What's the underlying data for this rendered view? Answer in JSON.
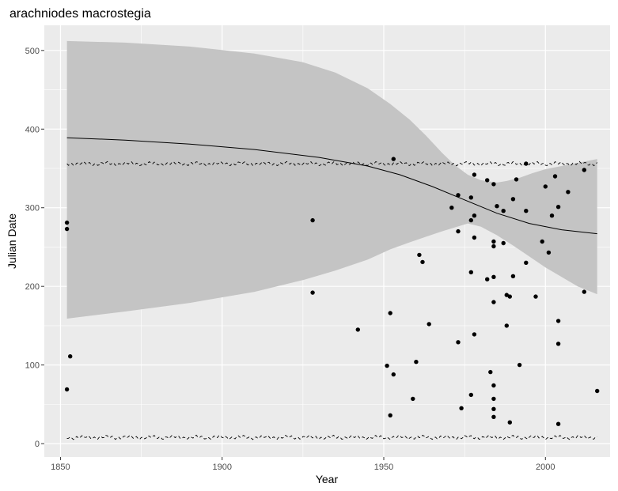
{
  "chart_data": {
    "type": "scatter",
    "title": "arachniodes macrostegia",
    "xlabel": "Year",
    "ylabel": "Julian Date",
    "xlim": [
      1845,
      2020
    ],
    "ylim": [
      -17,
      532
    ],
    "x_ticks": [
      1850,
      1900,
      1950,
      2000
    ],
    "y_ticks": [
      0,
      100,
      200,
      300,
      400,
      500
    ],
    "grid": true,
    "background": "#ebebeb",
    "gridline_color": "#ffffff",
    "ribbon_color": "#c4c4c4",
    "point_color": "#000000",
    "points": [
      [
        1852,
        281
      ],
      [
        1852,
        273
      ],
      [
        1852,
        69
      ],
      [
        1853,
        111
      ],
      [
        1928,
        284
      ],
      [
        1928,
        192
      ],
      [
        1942,
        145
      ],
      [
        1951,
        99
      ],
      [
        1952,
        166
      ],
      [
        1952,
        36
      ],
      [
        1953,
        88
      ],
      [
        1953,
        362
      ],
      [
        1959,
        57
      ],
      [
        1960,
        104
      ],
      [
        1961,
        240
      ],
      [
        1962,
        231
      ],
      [
        1964,
        152
      ],
      [
        1971,
        300
      ],
      [
        1973,
        316
      ],
      [
        1973,
        270
      ],
      [
        1973,
        129
      ],
      [
        1974,
        45
      ],
      [
        1977,
        313
      ],
      [
        1977,
        284
      ],
      [
        1977,
        218
      ],
      [
        1977,
        62
      ],
      [
        1978,
        342
      ],
      [
        1978,
        290
      ],
      [
        1978,
        262
      ],
      [
        1978,
        139
      ],
      [
        1982,
        335
      ],
      [
        1982,
        209
      ],
      [
        1983,
        91
      ],
      [
        1984,
        330
      ],
      [
        1984,
        257
      ],
      [
        1984,
        251
      ],
      [
        1984,
        212
      ],
      [
        1984,
        180
      ],
      [
        1984,
        74
      ],
      [
        1984,
        57
      ],
      [
        1984,
        44
      ],
      [
        1984,
        34
      ],
      [
        1985,
        302
      ],
      [
        1987,
        296
      ],
      [
        1987,
        255
      ],
      [
        1988,
        189
      ],
      [
        1988,
        150
      ],
      [
        1989,
        187
      ],
      [
        1989,
        27
      ],
      [
        1990,
        311
      ],
      [
        1990,
        213
      ],
      [
        1991,
        336
      ],
      [
        1992,
        100
      ],
      [
        1994,
        356
      ],
      [
        1994,
        296
      ],
      [
        1994,
        230
      ],
      [
        1997,
        187
      ],
      [
        1999,
        257
      ],
      [
        2000,
        327
      ],
      [
        2001,
        243
      ],
      [
        2002,
        290
      ],
      [
        2003,
        340
      ],
      [
        2004,
        301
      ],
      [
        2004,
        156
      ],
      [
        2004,
        127
      ],
      [
        2004,
        25
      ],
      [
        2007,
        320
      ],
      [
        2012,
        348
      ],
      [
        2012,
        193
      ],
      [
        2016,
        67
      ]
    ],
    "smooth_line": [
      [
        1852,
        389
      ],
      [
        1870,
        386
      ],
      [
        1890,
        381
      ],
      [
        1910,
        374
      ],
      [
        1930,
        364
      ],
      [
        1945,
        353
      ],
      [
        1955,
        342
      ],
      [
        1965,
        327
      ],
      [
        1975,
        310
      ],
      [
        1985,
        293
      ],
      [
        1995,
        280
      ],
      [
        2005,
        272
      ],
      [
        2016,
        267
      ]
    ],
    "ribbon_upper": [
      [
        1852,
        512
      ],
      [
        1870,
        510
      ],
      [
        1890,
        505
      ],
      [
        1910,
        496
      ],
      [
        1925,
        485
      ],
      [
        1935,
        472
      ],
      [
        1945,
        452
      ],
      [
        1952,
        432
      ],
      [
        1958,
        412
      ],
      [
        1963,
        392
      ],
      [
        1968,
        370
      ],
      [
        1972,
        354
      ],
      [
        1976,
        342
      ],
      [
        1980,
        335
      ],
      [
        1985,
        332
      ],
      [
        1988,
        334
      ],
      [
        1992,
        338
      ],
      [
        1996,
        344
      ],
      [
        2000,
        349
      ],
      [
        2005,
        353
      ],
      [
        2010,
        357
      ],
      [
        2016,
        362
      ]
    ],
    "ribbon_lower": [
      [
        1852,
        159
      ],
      [
        1870,
        168
      ],
      [
        1890,
        179
      ],
      [
        1910,
        193
      ],
      [
        1925,
        208
      ],
      [
        1935,
        220
      ],
      [
        1945,
        234
      ],
      [
        1952,
        247
      ],
      [
        1958,
        256
      ],
      [
        1963,
        263
      ],
      [
        1968,
        270
      ],
      [
        1972,
        275
      ],
      [
        1976,
        280
      ],
      [
        1980,
        276
      ],
      [
        1985,
        265
      ],
      [
        1990,
        252
      ],
      [
        1995,
        238
      ],
      [
        2000,
        224
      ],
      [
        2005,
        212
      ],
      [
        2010,
        200
      ],
      [
        2016,
        190
      ]
    ],
    "upper_dashed_level": 356,
    "lower_dashed_level": 8
  }
}
